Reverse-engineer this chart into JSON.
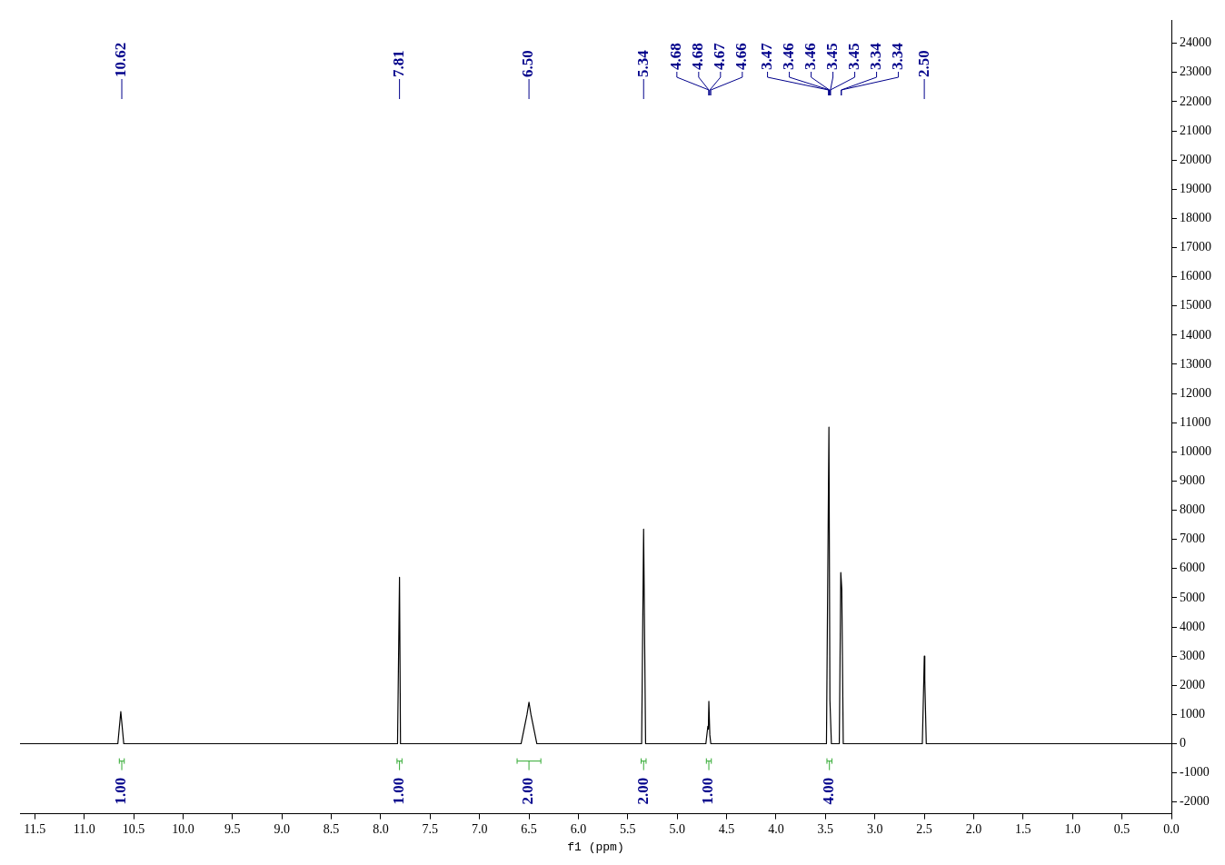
{
  "chart_data": {
    "type": "line",
    "xlabel": "f1 (ppm)",
    "xlim": [
      11.65,
      0
    ],
    "xticks": [
      11.5,
      {
        "value": 11,
        "label": "11.0"
      },
      10.5,
      {
        "value": 10,
        "label": "10.0"
      },
      9.5,
      {
        "value": 9,
        "label": "9.0"
      },
      8.5,
      {
        "value": 8,
        "label": "8.0"
      },
      7.5,
      {
        "value": 7,
        "label": "7.0"
      },
      6.5,
      {
        "value": 6,
        "label": "6.0"
      },
      5.5,
      {
        "value": 5,
        "label": "5.0"
      },
      4.5,
      {
        "value": 4,
        "label": "4.0"
      },
      3.5,
      {
        "value": 3,
        "label": "3.0"
      },
      2.5,
      {
        "value": 2,
        "label": "2.0"
      },
      1.5,
      {
        "value": 1,
        "label": "1.0"
      },
      0.5,
      {
        "value": 0,
        "label": "0.0"
      }
    ],
    "ylim": [
      -2400,
      24800
    ],
    "yticks": [
      -2000,
      -1000,
      0,
      1000,
      2000,
      3000,
      4000,
      5000,
      6000,
      7000,
      8000,
      9000,
      10000,
      11000,
      12000,
      13000,
      14000,
      15000,
      16000,
      17000,
      18000,
      19000,
      20000,
      21000,
      22000,
      23000,
      24000
    ],
    "grid": false,
    "legend": false,
    "marker": "none",
    "line_style": "solid",
    "series": [
      {
        "color": "#000000",
        "x": [
          11.65,
          10.66,
          10.63,
          10.6,
          7.83,
          7.81,
          7.8,
          6.58,
          6.52,
          6.5,
          6.48,
          6.42,
          5.36,
          5.34,
          5.32,
          4.71,
          4.69,
          4.685,
          4.68,
          4.67,
          4.66,
          3.49,
          3.465,
          3.455,
          3.44,
          3.36,
          3.345,
          3.335,
          3.32,
          2.52,
          2.505,
          2.5,
          2.495,
          2.48,
          0
        ],
        "values": [
          0,
          0,
          1100,
          0,
          0,
          5700,
          0,
          0,
          1000,
          1420,
          1000,
          0,
          0,
          7350,
          0,
          0,
          600,
          500,
          1450,
          300,
          0,
          0,
          10850,
          1500,
          0,
          0,
          5870,
          5300,
          0,
          0,
          2200,
          3000,
          2200,
          0,
          0
        ]
      }
    ],
    "annotations": [
      {
        "text": "10.62",
        "x": 10.62
      },
      {
        "text": "7.81",
        "x": 7.81
      },
      {
        "text": "6.50",
        "x": 6.5
      },
      {
        "text": "5.34",
        "x": 5.34
      },
      {
        "text": "4.68",
        "x": 4.68
      },
      {
        "text": "4.68",
        "x": 4.68
      },
      {
        "text": "4.67",
        "x": 4.67
      },
      {
        "text": "4.66",
        "x": 4.66
      },
      {
        "text": "3.47",
        "x": 3.47
      },
      {
        "text": "3.46",
        "x": 3.46
      },
      {
        "text": "3.46",
        "x": 3.46
      },
      {
        "text": "3.45",
        "x": 3.45
      },
      {
        "text": "3.45",
        "x": 3.45
      },
      {
        "text": "3.34",
        "x": 3.34
      },
      {
        "text": "3.34",
        "x": 3.34
      },
      {
        "text": "2.50",
        "x": 2.5
      },
      {
        "text": "1.00",
        "x": 10.62
      },
      {
        "text": "1.00",
        "x": 7.81
      },
      {
        "text": "2.00",
        "x": 6.5
      },
      {
        "text": "2.00",
        "x": 5.34
      },
      {
        "text": "1.00",
        "x": 4.68
      },
      {
        "text": "4.00",
        "x": 3.46
      }
    ]
  }
}
